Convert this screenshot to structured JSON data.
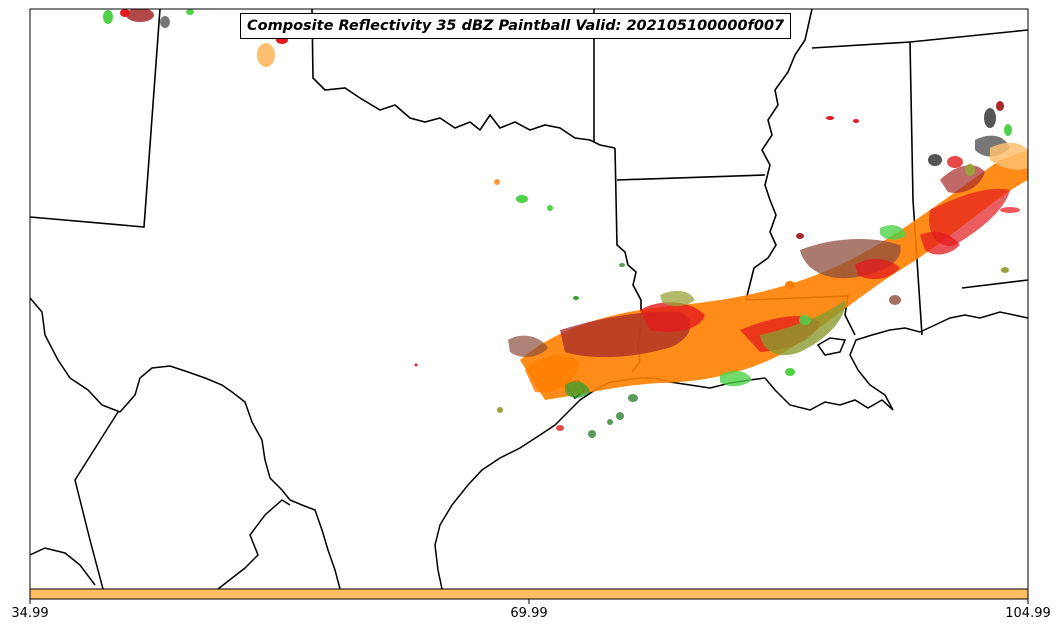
{
  "title": "Composite Reflectivity 35 dBZ Paintball Valid: 202105100000f007",
  "colorbar": {
    "ticks": [
      "34.99",
      "69.99",
      "104.99"
    ],
    "color": "#fdbf61"
  },
  "paintball_colors": [
    "#e31a1c",
    "#ff7f00",
    "#fb9a99",
    "#fdbf6f",
    "#33a02c",
    "#6a3d9a",
    "#b15928",
    "#666666",
    "#b2df8a",
    "#cab2d6",
    "#a6cee3",
    "#1f78b4"
  ],
  "map_style": {
    "background": "#ffffff",
    "boundary_color": "#000000"
  }
}
